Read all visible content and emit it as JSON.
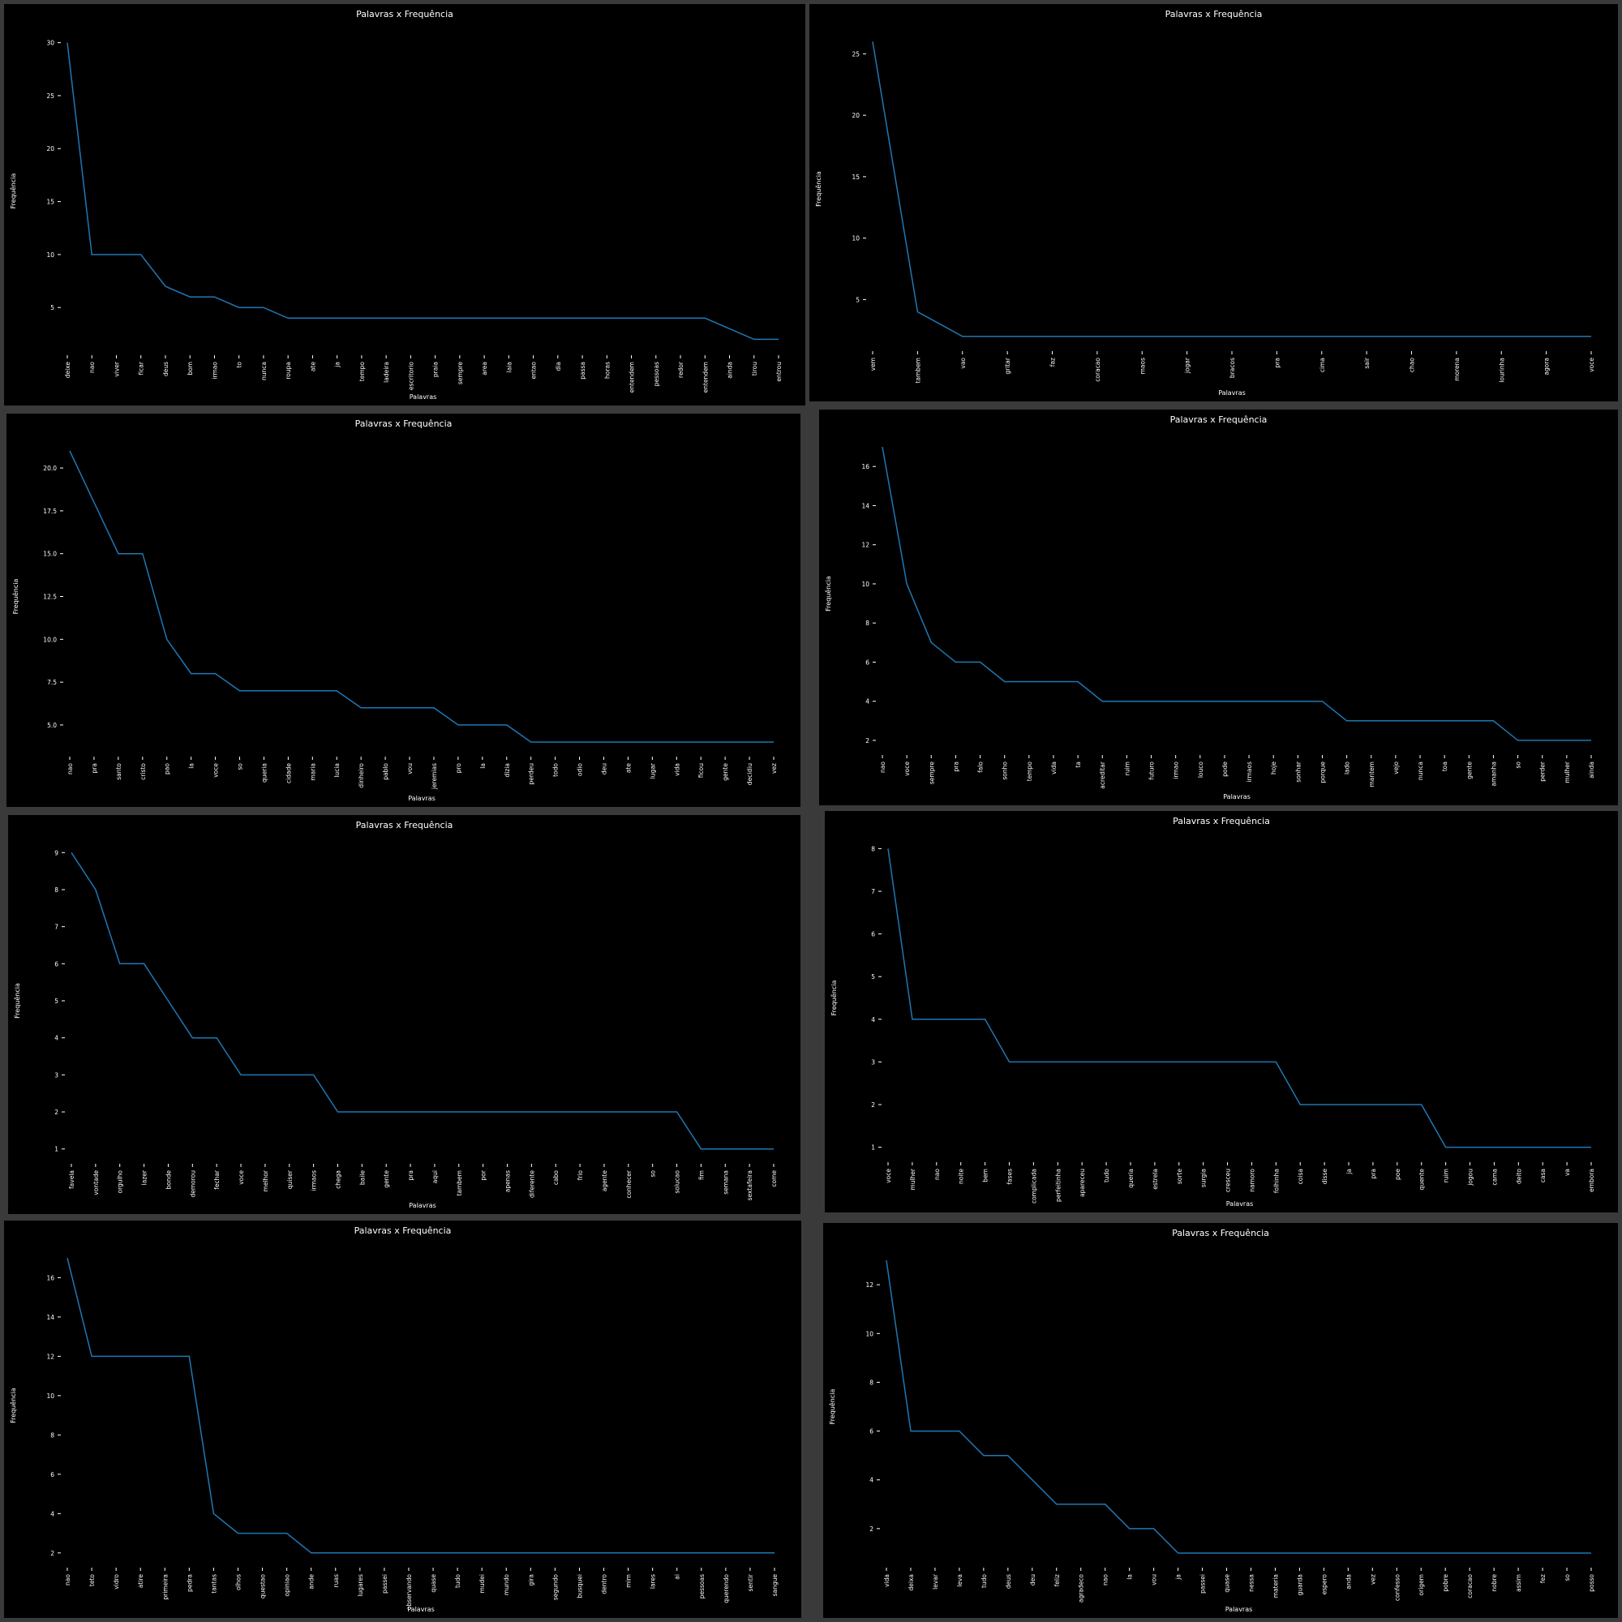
{
  "colors": {
    "background": "#3a3a3a",
    "panel": "#000000",
    "line": "#1f77b4",
    "text": "#ffffff"
  },
  "chart_data": [
    {
      "type": "line",
      "title": "Palavras x Frequência",
      "xlabel": "Palavras",
      "ylabel": "Frequência",
      "ylim": [
        0.5,
        31.5
      ],
      "yticks": [
        5,
        10,
        15,
        20,
        25,
        30
      ],
      "categories": [
        "deixe",
        "nao",
        "viver",
        "ficar",
        "deus",
        "bom",
        "irmao",
        "to",
        "nunca",
        "roupa",
        "ate",
        "ja",
        "tempo",
        "ladeira",
        "escritorio",
        "praia",
        "sempre",
        "area",
        "laia",
        "entao",
        "dia",
        "passa",
        "horas",
        "entendem",
        "pessoas",
        "redor",
        "entendem",
        "ainda",
        "tirou",
        "entrou"
      ],
      "values": [
        30,
        10,
        10,
        10,
        7,
        6,
        6,
        5,
        5,
        4,
        4,
        4,
        4,
        4,
        4,
        4,
        4,
        4,
        4,
        4,
        4,
        4,
        4,
        4,
        4,
        4,
        4,
        3,
        2,
        2
      ]
    },
    {
      "type": "line",
      "title": "Palavras x Frequência",
      "xlabel": "Palavras",
      "ylabel": "Frequência",
      "ylim": [
        0.8,
        27.2
      ],
      "yticks": [
        5,
        10,
        15,
        20,
        25
      ],
      "categories": [
        "vem",
        "tambem",
        "vao",
        "gritar",
        "faz",
        "coracao",
        "maos",
        "jogar",
        "bracos",
        "pra",
        "cima",
        "sair",
        "chao",
        "morena",
        "lourinha",
        "agora",
        "voce"
      ],
      "values": [
        26,
        4,
        2,
        2,
        2,
        2,
        2,
        2,
        2,
        2,
        2,
        2,
        2,
        2,
        2,
        2,
        2
      ]
    },
    {
      "type": "line",
      "title": "Palavras x Frequência",
      "xlabel": "Palavras",
      "ylabel": "Frequência",
      "ylim": [
        3.15,
        21.85
      ],
      "yticks": [
        5.0,
        7.5,
        10.0,
        12.5,
        15.0,
        17.5,
        20.0
      ],
      "ytick_labels": [
        "5.0",
        "7.5",
        "10.0",
        "12.5",
        "15.0",
        "17.5",
        "20.0"
      ],
      "categories": [
        "nao",
        "pra",
        "santo",
        "cristo",
        "pao",
        "la",
        "voce",
        "so",
        "queria",
        "cidade",
        "maria",
        "lucia",
        "dinheiro",
        "pablo",
        "vou",
        "jeremias",
        "pro",
        "la",
        "dizia",
        "perdeu",
        "todo",
        "odio",
        "deu",
        "ate",
        "lugar",
        "vida",
        "ficou",
        "gente",
        "decidiu",
        "vez"
      ],
      "values": [
        21,
        18,
        15,
        15,
        10,
        8,
        8,
        7,
        7,
        7,
        7,
        7,
        6,
        6,
        6,
        6,
        5,
        5,
        5,
        4,
        4,
        4,
        4,
        4,
        4,
        4,
        4,
        4,
        4,
        4
      ]
    },
    {
      "type": "line",
      "title": "Palavras x Frequência",
      "xlabel": "Palavras",
      "ylabel": "Frequência",
      "ylim": [
        1.25,
        17.75
      ],
      "yticks": [
        2,
        4,
        6,
        8,
        10,
        12,
        14,
        16
      ],
      "categories": [
        "nao",
        "voce",
        "sempre",
        "pra",
        "falo",
        "sonho",
        "tempo",
        "vida",
        "ta",
        "acreditar",
        "ruim",
        "futuro",
        "irmao",
        "louco",
        "pode",
        "irmaos",
        "hoje",
        "sonhar",
        "porque",
        "lado",
        "mantem",
        "vejo",
        "nunca",
        "toa",
        "gente",
        "amanha",
        "so",
        "perder",
        "mulher",
        "ainda"
      ],
      "values": [
        17,
        10,
        7,
        6,
        6,
        5,
        5,
        5,
        5,
        4,
        4,
        4,
        4,
        4,
        4,
        4,
        4,
        4,
        4,
        3,
        3,
        3,
        3,
        3,
        3,
        3,
        2,
        2,
        2,
        2
      ]
    },
    {
      "type": "line",
      "title": "Palavras x Frequência",
      "xlabel": "Palavras",
      "ylabel": "Frequência",
      "ylim": [
        0.6,
        9.4
      ],
      "yticks": [
        1,
        2,
        3,
        4,
        5,
        6,
        7,
        8,
        9
      ],
      "categories": [
        "favela",
        "vontade",
        "orgulho",
        "lazer",
        "bonde",
        "demorou",
        "fechar",
        "voce",
        "melhor",
        "quiser",
        "irmaos",
        "chega",
        "baile",
        "gente",
        "pra",
        "aqui",
        "tambem",
        "por",
        "apenas",
        "diferente",
        "cabo",
        "frio",
        "agente",
        "conhecer",
        "so",
        "solucao",
        "fim",
        "semana",
        "sextafeira",
        "come"
      ],
      "values": [
        9,
        8,
        6,
        6,
        5,
        4,
        4,
        3,
        3,
        3,
        3,
        2,
        2,
        2,
        2,
        2,
        2,
        2,
        2,
        2,
        2,
        2,
        2,
        2,
        2,
        2,
        1,
        1,
        1,
        1
      ]
    },
    {
      "type": "line",
      "title": "Palavras x Frequência",
      "xlabel": "Palavras",
      "ylabel": "Frequência",
      "ylim": [
        0.65,
        8.35
      ],
      "yticks": [
        1,
        2,
        3,
        4,
        5,
        6,
        7,
        8
      ],
      "categories": [
        "voce",
        "mulher",
        "nao",
        "noite",
        "bem",
        "fases",
        "complicada",
        "perfeitinha",
        "apareceu",
        "tudo",
        "queria",
        "estrela",
        "sorte",
        "surgia",
        "cresceu",
        "namoro",
        "folhinha",
        "coisa",
        "disse",
        "ja",
        "pra",
        "poe",
        "quente",
        "ruim",
        "jogou",
        "cama",
        "deito",
        "casa",
        "va",
        "embora"
      ],
      "values": [
        8,
        4,
        4,
        4,
        4,
        3,
        3,
        3,
        3,
        3,
        3,
        3,
        3,
        3,
        3,
        3,
        3,
        2,
        2,
        2,
        2,
        2,
        2,
        1,
        1,
        1,
        1,
        1,
        1,
        1
      ]
    },
    {
      "type": "line",
      "title": "Palavras x Frequência",
      "xlabel": "Palavras",
      "ylabel": "Frequência",
      "ylim": [
        1.25,
        17.75
      ],
      "yticks": [
        2,
        4,
        6,
        8,
        10,
        12,
        14,
        16
      ],
      "categories": [
        "nao",
        "teto",
        "vidro",
        "atire",
        "primeira",
        "pedra",
        "tantas",
        "olhos",
        "questao",
        "opiniao",
        "ande",
        "ruas",
        "lugares",
        "passei",
        "observando",
        "quase",
        "tudo",
        "mudei",
        "mundo",
        "gira",
        "segundo",
        "busquei",
        "dentro",
        "mim",
        "lares",
        "ai",
        "pessoas",
        "querendo",
        "sentir",
        "sangue"
      ],
      "values": [
        17,
        12,
        12,
        12,
        12,
        12,
        4,
        3,
        3,
        3,
        2,
        2,
        2,
        2,
        2,
        2,
        2,
        2,
        2,
        2,
        2,
        2,
        2,
        2,
        2,
        2,
        2,
        2,
        2,
        2
      ]
    },
    {
      "type": "line",
      "title": "Palavras x Frequência",
      "xlabel": "Palavras",
      "ylabel": "Frequência",
      "ylim": [
        0.4,
        13.6
      ],
      "yticks": [
        2,
        4,
        6,
        8,
        10,
        12
      ],
      "categories": [
        "vida",
        "deixa",
        "levar",
        "leva",
        "tudo",
        "deus",
        "deu",
        "feliz",
        "agradeco",
        "nao",
        "la",
        "vou",
        "ja",
        "passei",
        "quase",
        "nessa",
        "materia",
        "guarda",
        "espero",
        "anda",
        "vez",
        "confesso",
        "origem",
        "pobre",
        "coracao",
        "nobre",
        "assim",
        "fez",
        "so",
        "posso"
      ],
      "values": [
        13,
        6,
        6,
        6,
        5,
        5,
        4,
        3,
        3,
        3,
        2,
        2,
        1,
        1,
        1,
        1,
        1,
        1,
        1,
        1,
        1,
        1,
        1,
        1,
        1,
        1,
        1,
        1,
        1,
        1
      ]
    }
  ]
}
